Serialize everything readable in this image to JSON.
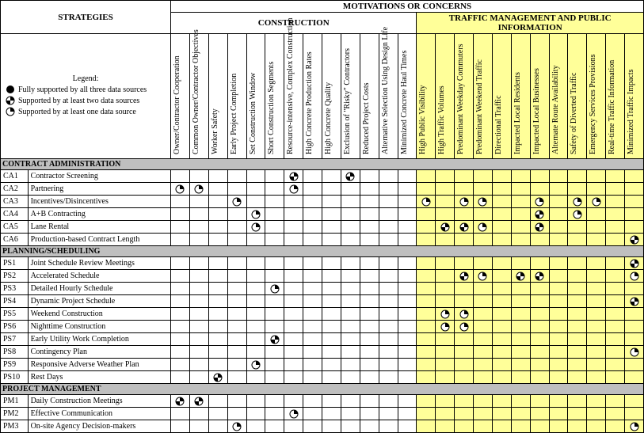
{
  "title_strategies": "STRATEGIES",
  "title_motivations": "MOTIVATIONS OR CONCERNS",
  "title_construction": "CONSTRUCTION",
  "title_traffic": "TRAFFIC MANAGEMENT AND PUBLIC INFORMATION",
  "legend": {
    "heading": "Legend:",
    "full": "Fully supported by all three data sources",
    "two": "Supported by at least two data sources",
    "one": "Supported by at least one data source"
  },
  "columns_construction": [
    "Owner/Contractor Cooperation",
    "Common Owner/Contractor Objectives",
    "Worker Safety",
    "Early Project Completion",
    "Set Construction Window",
    "Short Construction Segments",
    "Resource-intensive, Complex Construction",
    "High Concrete Production Rates",
    "High Concrete Quality",
    "Exclusion of \"Risky\" Contractors",
    "Reduced Project Costs",
    "Alternative Selection Using Design Life",
    "Minimized Concrete Haul Times"
  ],
  "columns_traffic": [
    "High Public Visibility",
    "High Traffic Volumes",
    "Predominant Weekday Commuters",
    "Predominant Weekend Traffic",
    "Directional Traffic",
    "Impacted Local Residents",
    "Impacted Local Businesses",
    "Alternate Route Availability",
    "Safety of Diverted Traffic",
    "Emergency Services Provisions",
    "Real-time Traffic Information",
    "Minimized Traffic Impacts"
  ],
  "sections": [
    {
      "title": "CONTRACT ADMINISTRATION",
      "rows": [
        {
          "code": "CA1",
          "name": "Contractor Screening",
          "marks": [
            "",
            "",
            "",
            "",
            "",
            "",
            "2",
            "",
            "",
            "2",
            "",
            "",
            "",
            "",
            "",
            "",
            "",
            "",
            "",
            "",
            "",
            "",
            "",
            "",
            ""
          ]
        },
        {
          "code": "CA2",
          "name": "Partnering",
          "marks": [
            "1",
            "1",
            "",
            "",
            "",
            "",
            "1",
            "",
            "",
            "",
            "",
            "",
            "",
            "",
            "",
            "",
            "",
            "",
            "",
            "",
            "",
            "",
            "",
            "",
            ""
          ]
        },
        {
          "code": "CA3",
          "name": "Incentives/Disincentives",
          "marks": [
            "",
            "",
            "",
            "1",
            "",
            "",
            "",
            "",
            "",
            "",
            "",
            "",
            "",
            "1",
            "",
            "1",
            "1",
            "",
            "",
            "1",
            "",
            "1",
            "1",
            "",
            ""
          ]
        },
        {
          "code": "CA4",
          "name": "A+B Contracting",
          "marks": [
            "",
            "",
            "",
            "",
            "1",
            "",
            "",
            "",
            "",
            "",
            "",
            "",
            "",
            "",
            "",
            "",
            "",
            "",
            "",
            "2",
            "",
            "1",
            "",
            "",
            ""
          ]
        },
        {
          "code": "CA5",
          "name": "Lane Rental",
          "marks": [
            "",
            "",
            "",
            "",
            "1",
            "",
            "",
            "",
            "",
            "",
            "",
            "",
            "",
            "",
            "2",
            "2",
            "1",
            "",
            "",
            "2",
            "",
            "",
            "",
            "",
            ""
          ]
        },
        {
          "code": "CA6",
          "name": "Production-based Contract Length",
          "marks": [
            "",
            "",
            "",
            "",
            "",
            "",
            "",
            "",
            "",
            "",
            "",
            "",
            "",
            "",
            "",
            "",
            "",
            "",
            "",
            "",
            "",
            "",
            "",
            "",
            "2"
          ]
        }
      ]
    },
    {
      "title": "PLANNING/SCHEDULING",
      "rows": [
        {
          "code": "PS1",
          "name": "Joint Schedule Review Meetings",
          "marks": [
            "",
            "",
            "",
            "",
            "",
            "",
            "",
            "",
            "",
            "",
            "",
            "",
            "",
            "",
            "",
            "",
            "",
            "",
            "",
            "",
            "",
            "",
            "",
            "",
            "2"
          ]
        },
        {
          "code": "PS2",
          "name": "Accelerated Schedule",
          "marks": [
            "",
            "",
            "",
            "",
            "",
            "",
            "",
            "",
            "",
            "",
            "",
            "",
            "",
            "",
            "",
            "2",
            "1",
            "",
            "2",
            "2",
            "",
            "",
            "",
            "",
            "1"
          ]
        },
        {
          "code": "PS3",
          "name": "Detailed Hourly Schedule",
          "marks": [
            "",
            "",
            "",
            "",
            "",
            "1",
            "",
            "",
            "",
            "",
            "",
            "",
            "",
            "",
            "",
            "",
            "",
            "",
            "",
            "",
            "",
            "",
            "",
            "",
            ""
          ]
        },
        {
          "code": "PS4",
          "name": "Dynamic Project Schedule",
          "marks": [
            "",
            "",
            "",
            "",
            "",
            "",
            "",
            "",
            "",
            "",
            "",
            "",
            "",
            "",
            "",
            "",
            "",
            "",
            "",
            "",
            "",
            "",
            "",
            "",
            "2"
          ]
        },
        {
          "code": "PS5",
          "name": "Weekend Construction",
          "marks": [
            "",
            "",
            "",
            "",
            "",
            "",
            "",
            "",
            "",
            "",
            "",
            "",
            "",
            "",
            "1",
            "1",
            "",
            "",
            "",
            "",
            "",
            "",
            "",
            "",
            ""
          ]
        },
        {
          "code": "PS6",
          "name": "Nighttime Construction",
          "marks": [
            "",
            "",
            "",
            "",
            "",
            "",
            "",
            "",
            "",
            "",
            "",
            "",
            "",
            "",
            "1",
            "1",
            "",
            "",
            "",
            "",
            "",
            "",
            "",
            "",
            ""
          ]
        },
        {
          "code": "PS7",
          "name": "Early Utility Work Completion",
          "marks": [
            "",
            "",
            "",
            "",
            "",
            "2",
            "",
            "",
            "",
            "",
            "",
            "",
            "",
            "",
            "",
            "",
            "",
            "",
            "",
            "",
            "",
            "",
            "",
            "",
            ""
          ]
        },
        {
          "code": "PS8",
          "name": "Contingency Plan",
          "marks": [
            "",
            "",
            "",
            "",
            "",
            "",
            "",
            "",
            "",
            "",
            "",
            "",
            "",
            "",
            "",
            "",
            "",
            "",
            "",
            "",
            "",
            "",
            "",
            "",
            "1"
          ]
        },
        {
          "code": "PS9",
          "name": "Responsive Adverse Weather Plan",
          "marks": [
            "",
            "",
            "",
            "",
            "1",
            "",
            "",
            "",
            "",
            "",
            "",
            "",
            "",
            "",
            "",
            "",
            "",
            "",
            "",
            "",
            "",
            "",
            "",
            "",
            ""
          ]
        },
        {
          "code": "PS10",
          "name": "Rest Days",
          "marks": [
            "",
            "",
            "2",
            "",
            "",
            "",
            "",
            "",
            "",
            "",
            "",
            "",
            "",
            "",
            "",
            "",
            "",
            "",
            "",
            "",
            "",
            "",
            "",
            "",
            ""
          ]
        }
      ]
    },
    {
      "title": "PROJECT MANAGEMENT",
      "rows": [
        {
          "code": "PM1",
          "name": "Daily Construction Meetings",
          "marks": [
            "2",
            "2",
            "",
            "",
            "",
            "",
            "",
            "",
            "",
            "",
            "",
            "",
            "",
            "",
            "",
            "",
            "",
            "",
            "",
            "",
            "",
            "",
            "",
            "",
            ""
          ]
        },
        {
          "code": "PM2",
          "name": "Effective Communication",
          "marks": [
            "",
            "",
            "",
            "",
            "",
            "",
            "1",
            "",
            "",
            "",
            "",
            "",
            "",
            "",
            "",
            "",
            "",
            "",
            "",
            "",
            "",
            "",
            "",
            "",
            ""
          ]
        },
        {
          "code": "PM3",
          "name": "On-site Agency Decision-makers",
          "marks": [
            "",
            "",
            "",
            "1",
            "",
            "",
            "",
            "",
            "",
            "",
            "",
            "",
            "",
            "",
            "",
            "",
            "",
            "",
            "",
            "",
            "",
            "",
            "",
            "",
            "1"
          ]
        }
      ]
    }
  ],
  "style": {
    "yellow": "#ffff99",
    "section_bg": "#bfbfbf",
    "font": "Times New Roman",
    "construction_cols": 13,
    "traffic_cols": 12,
    "total_cols": 25
  }
}
